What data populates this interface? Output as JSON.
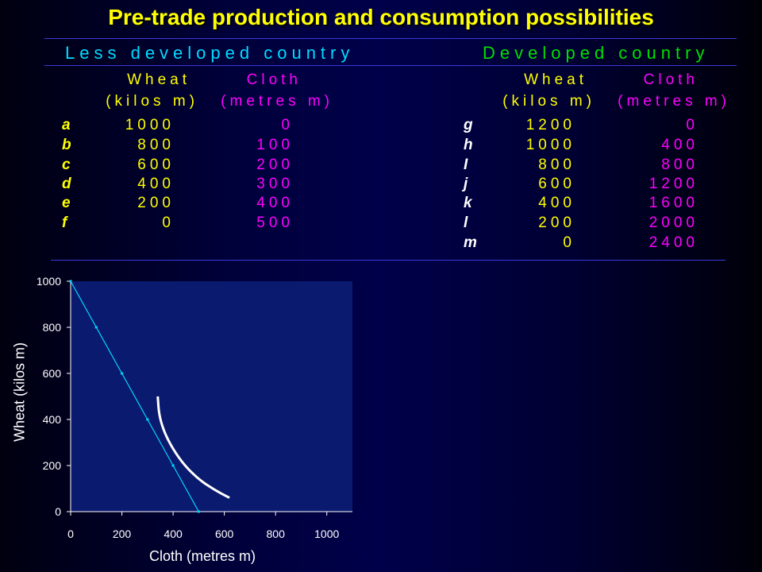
{
  "title": "Pre-trade production and consumption possibilities",
  "colors": {
    "yellow": "#ffff00",
    "green": "#00e000",
    "magenta": "#ff00ff",
    "cyan": "#00d8ff",
    "plot_bg": "#0a1a6e",
    "curve": "#ffffff"
  },
  "less_developed": {
    "title": "Less developed country",
    "header_wheat_1": "Wheat",
    "header_wheat_2": "(kilos m)",
    "header_cloth_1": "Cloth",
    "header_cloth_2": "(metres m)",
    "rows": [
      {
        "label": "a",
        "wheat": "1000",
        "cloth": "0"
      },
      {
        "label": "b",
        "wheat": "800",
        "cloth": "100"
      },
      {
        "label": "c",
        "wheat": "600",
        "cloth": "200"
      },
      {
        "label": "d",
        "wheat": "400",
        "cloth": "300"
      },
      {
        "label": "e",
        "wheat": "200",
        "cloth": "400"
      },
      {
        "label": "f",
        "wheat": "0",
        "cloth": "500"
      }
    ]
  },
  "developed": {
    "title": "Developed country",
    "header_wheat_1": "Wheat",
    "header_wheat_2": "(kilos m)",
    "header_cloth_1": "Cloth",
    "header_cloth_2": "(metres m)",
    "rows": [
      {
        "label": "g",
        "wheat": "1200",
        "cloth": "0"
      },
      {
        "label": "h",
        "wheat": "1000",
        "cloth": "400"
      },
      {
        "label": "I",
        "wheat": "800",
        "cloth": "800"
      },
      {
        "label": "j",
        "wheat": "600",
        "cloth": "1200"
      },
      {
        "label": "k",
        "wheat": "400",
        "cloth": "1600"
      },
      {
        "label": "l",
        "wheat": "200",
        "cloth": "2000"
      },
      {
        "label": "m",
        "wheat": "0",
        "cloth": "2400"
      }
    ]
  },
  "chart_data": {
    "type": "line",
    "xlabel": "Cloth (metres m)",
    "ylabel": "Wheat (kilos m)",
    "xlim": [
      0,
      1100
    ],
    "ylim": [
      0,
      1000
    ],
    "xticks": [
      0,
      200,
      400,
      600,
      800,
      1000
    ],
    "yticks": [
      0,
      200,
      400,
      600,
      800,
      1000
    ],
    "grid": false,
    "series": [
      {
        "x": [
          0,
          100,
          200,
          300,
          400,
          500
        ],
        "y": [
          1000,
          800,
          600,
          400,
          200,
          0
        ]
      }
    ],
    "curve": {
      "x": [
        340,
        345,
        365,
        400,
        445,
        500,
        560,
        620
      ],
      "y": [
        500,
        420,
        345,
        270,
        200,
        140,
        95,
        60
      ]
    }
  }
}
